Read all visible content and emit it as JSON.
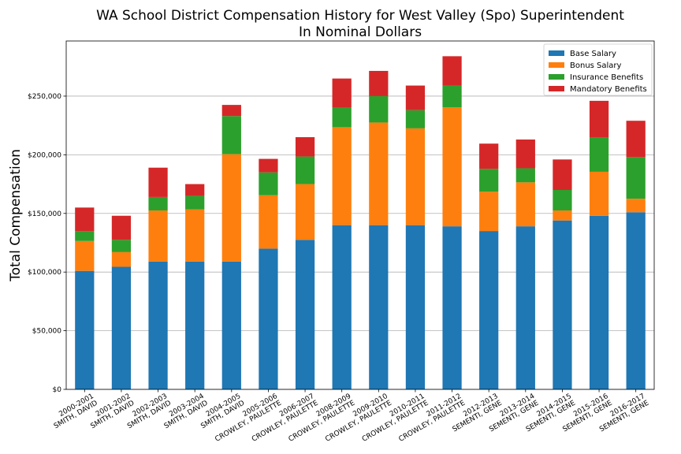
{
  "chart_data": {
    "type": "bar",
    "stacked": true,
    "title": "WA School District Compensation History for West Valley (Spo) Superintendent",
    "subtitle": "In Nominal Dollars",
    "xlabel": "",
    "ylabel": "Total Compensation",
    "ylim": [
      0,
      297000
    ],
    "yticks": [
      0,
      50000,
      100000,
      150000,
      200000,
      250000
    ],
    "ytick_labels": [
      "$0",
      "$50,000",
      "$100,000",
      "$150,000",
      "$200,000",
      "$250,000"
    ],
    "grid": "horizontal",
    "legend_position": "top-right",
    "categories": [
      [
        "2000-2001",
        "SMITH, DAVID"
      ],
      [
        "2001-2002",
        "SMITH, DAVID"
      ],
      [
        "2002-2003",
        "SMITH, DAVID"
      ],
      [
        "2003-2004",
        "SMITH, DAVID"
      ],
      [
        "2004-2005",
        "SMITH, DAVID"
      ],
      [
        "2005-2006",
        "CROWLEY, PAULETTE"
      ],
      [
        "2006-2007",
        "CROWLEY, PAULETTE"
      ],
      [
        "2008-2009",
        "CROWLEY, PAULETTE"
      ],
      [
        "2009-2010",
        "CROWLEY, PAULETTE"
      ],
      [
        "2010-2011",
        "CROWLEY, PAULETTE"
      ],
      [
        "2011-2012",
        "CROWLEY, PAULETTE"
      ],
      [
        "2012-2013",
        "SEMENTI, GENE"
      ],
      [
        "2013-2014",
        "SEMENTI, GENE"
      ],
      [
        "2014-2015",
        "SEMENTI, GENE"
      ],
      [
        "2015-2016",
        "SEMENTI, GENE"
      ],
      [
        "2016-2017",
        "SEMENTI, GENE"
      ]
    ],
    "series": [
      {
        "name": "Base Salary",
        "color": "#1f77b4",
        "values": [
          101000,
          104500,
          109000,
          109000,
          109000,
          120000,
          127500,
          140000,
          140000,
          140000,
          139000,
          135000,
          139000,
          144000,
          148000,
          151000
        ]
      },
      {
        "name": "Bonus Salary",
        "color": "#ff7f0e",
        "values": [
          25500,
          12500,
          43500,
          44500,
          91500,
          45500,
          47500,
          83500,
          87500,
          82500,
          101500,
          33500,
          37500,
          8500,
          37500,
          11500
        ]
      },
      {
        "name": "Insurance Benefits",
        "color": "#2ca02c",
        "values": [
          8500,
          10500,
          11500,
          11500,
          32500,
          19500,
          23500,
          16500,
          22500,
          15500,
          18500,
          19500,
          12000,
          17500,
          29500,
          35500
        ]
      },
      {
        "name": "Mandatory Benefits",
        "color": "#d62728",
        "values": [
          20000,
          20500,
          25000,
          10000,
          9500,
          11500,
          16500,
          25000,
          21500,
          21000,
          25000,
          21500,
          24500,
          26000,
          31000,
          31000
        ]
      }
    ]
  }
}
